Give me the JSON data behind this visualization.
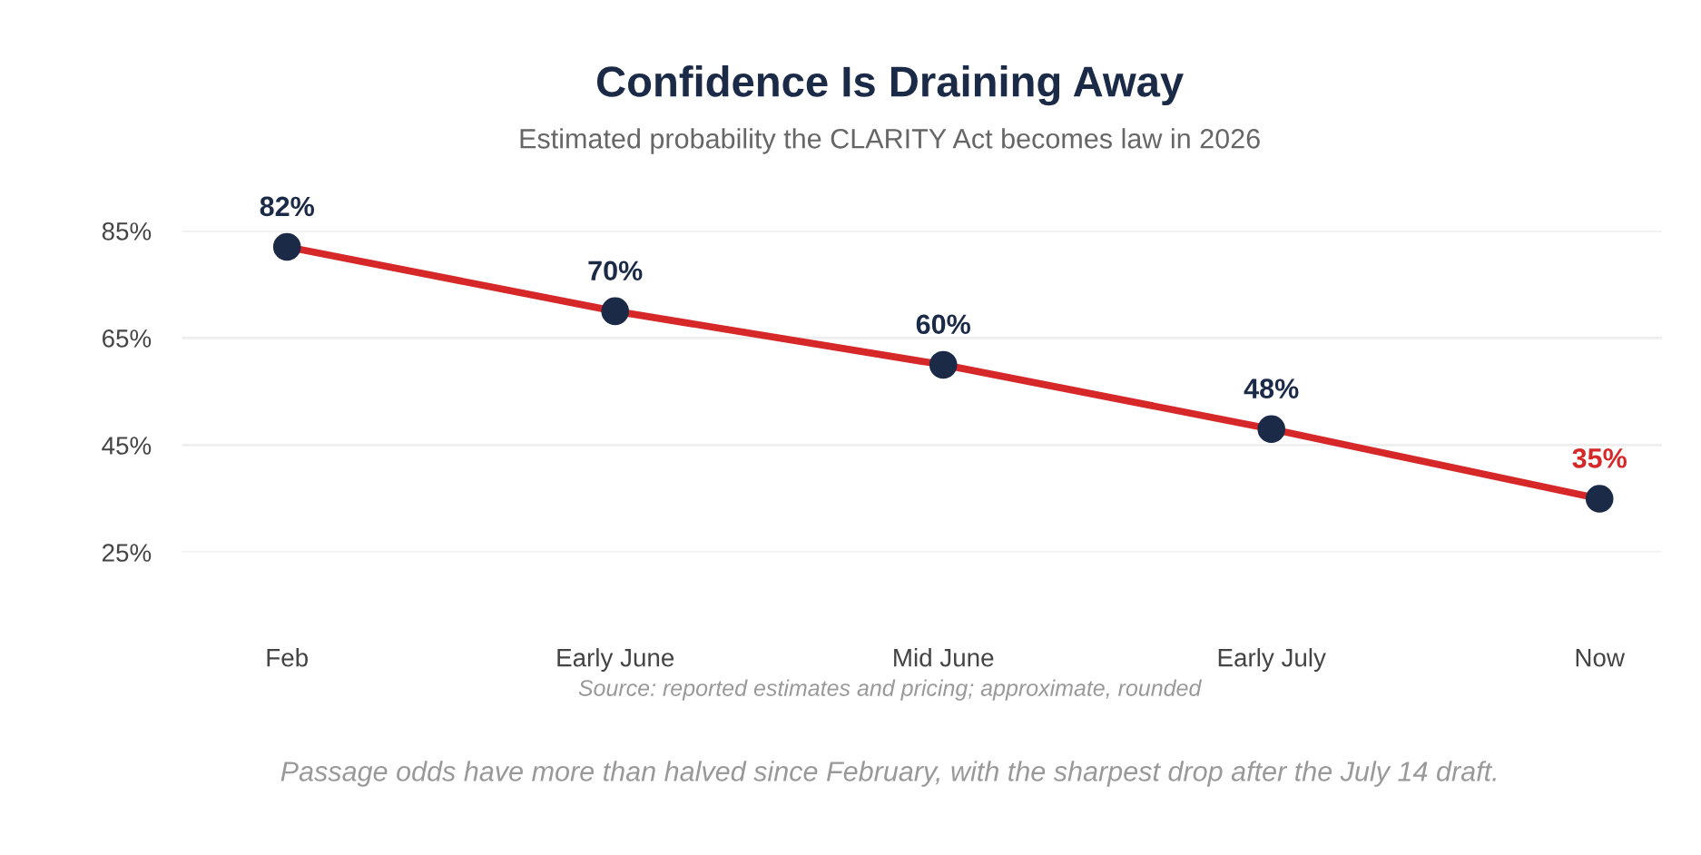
{
  "chart_data": {
    "type": "line",
    "title": "Confidence Is Draining Away",
    "subtitle": "Estimated probability the CLARITY Act becomes law in 2026",
    "categories": [
      "Feb",
      "Early June",
      "Mid June",
      "Early July",
      "Now"
    ],
    "series": [
      {
        "color": "#d62828",
        "values": [
          82,
          70,
          60,
          48,
          35
        ],
        "value_labels": [
          "82%",
          "70%",
          "60%",
          "48%",
          "35%"
        ]
      }
    ],
    "marker": "circle",
    "line_style": "solid",
    "ylim": [
      25,
      85
    ],
    "yticks": [
      {
        "value": 25,
        "label": "25%"
      },
      {
        "value": 45,
        "label": "45%"
      },
      {
        "value": 65,
        "label": "65%"
      },
      {
        "value": 85,
        "label": "85%"
      }
    ],
    "grid": "y",
    "legend": false,
    "annotations": [
      "Source: reported estimates and pricing; approximate, rounded",
      "Passage odds have more than halved since February, with the sharpest drop after the July 14 draft."
    ]
  }
}
